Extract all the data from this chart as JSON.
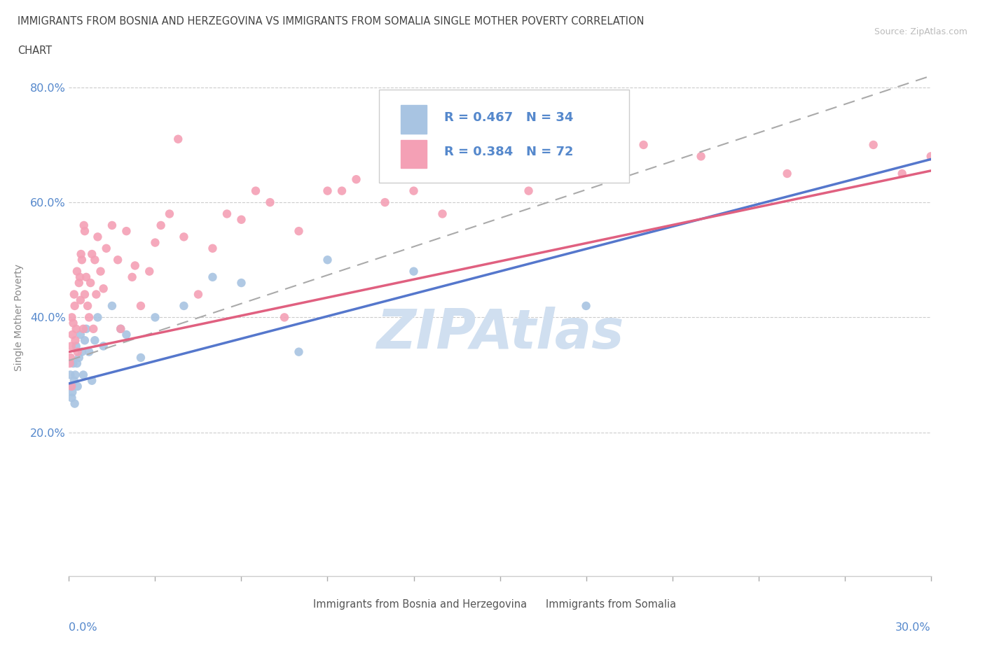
{
  "title_line1": "IMMIGRANTS FROM BOSNIA AND HERZEGOVINA VS IMMIGRANTS FROM SOMALIA SINGLE MOTHER POVERTY CORRELATION",
  "title_line2": "CHART",
  "source": "Source: ZipAtlas.com",
  "ylabel": "Single Mother Poverty",
  "legend_bosnia": "Immigrants from Bosnia and Herzegovina",
  "legend_somalia": "Immigrants from Somalia",
  "R_bosnia": 0.467,
  "N_bosnia": 34,
  "R_somalia": 0.384,
  "N_somalia": 72,
  "color_bosnia": "#a8c4e2",
  "color_somalia": "#f4a0b5",
  "color_axis_blue": "#5588cc",
  "color_title": "#555555",
  "watermark_color": "#d0dff0",
  "xmin": 0,
  "xmax": 30,
  "ymin": -5,
  "ymax": 85,
  "ytick_vals": [
    20,
    40,
    60,
    80
  ],
  "bos_x": [
    0.05,
    0.08,
    0.1,
    0.12,
    0.15,
    0.18,
    0.2,
    0.22,
    0.25,
    0.28,
    0.3,
    0.35,
    0.4,
    0.45,
    0.5,
    0.55,
    0.6,
    0.7,
    0.8,
    0.9,
    1.0,
    1.2,
    1.5,
    1.8,
    2.0,
    2.5,
    3.0,
    4.0,
    5.0,
    6.0,
    8.0,
    9.0,
    12.0,
    18.0
  ],
  "bos_y": [
    30,
    28,
    26,
    27,
    32,
    29,
    25,
    30,
    35,
    32,
    28,
    33,
    37,
    34,
    30,
    36,
    38,
    34,
    29,
    36,
    40,
    35,
    42,
    38,
    37,
    33,
    40,
    42,
    47,
    46,
    34,
    50,
    48,
    42
  ],
  "som_x": [
    0.03,
    0.06,
    0.08,
    0.1,
    0.12,
    0.15,
    0.18,
    0.2,
    0.22,
    0.25,
    0.28,
    0.3,
    0.35,
    0.4,
    0.45,
    0.5,
    0.55,
    0.6,
    0.65,
    0.7,
    0.75,
    0.8,
    0.85,
    0.9,
    0.95,
    1.0,
    1.1,
    1.2,
    1.3,
    1.5,
    1.7,
    2.0,
    2.2,
    2.5,
    2.8,
    3.0,
    3.5,
    4.0,
    5.0,
    5.5,
    6.0,
    7.0,
    8.0,
    9.0,
    10.0,
    11.0,
    12.0,
    13.0,
    15.0,
    16.0,
    17.0,
    18.0,
    20.0,
    22.0,
    25.0,
    28.0,
    29.0,
    30.0,
    3.2,
    0.42,
    0.52,
    4.5,
    6.5,
    7.5,
    2.3,
    0.55,
    1.8,
    3.8,
    0.38,
    9.5,
    14.0,
    0.09
  ],
  "som_y": [
    32,
    33,
    35,
    40,
    37,
    39,
    44,
    42,
    36,
    38,
    48,
    34,
    46,
    43,
    50,
    38,
    44,
    47,
    42,
    40,
    46,
    51,
    38,
    50,
    44,
    54,
    48,
    45,
    52,
    56,
    50,
    55,
    47,
    42,
    48,
    53,
    58,
    54,
    52,
    58,
    57,
    60,
    55,
    62,
    64,
    60,
    62,
    58,
    65,
    62,
    65,
    68,
    70,
    68,
    65,
    70,
    65,
    68,
    56,
    51,
    56,
    44,
    62,
    40,
    49,
    55,
    38,
    71,
    47,
    62,
    65,
    28
  ],
  "bos_line_intercept": 28.5,
  "bos_line_slope": 1.3,
  "som_line_intercept": 34.0,
  "som_line_slope": 1.05
}
